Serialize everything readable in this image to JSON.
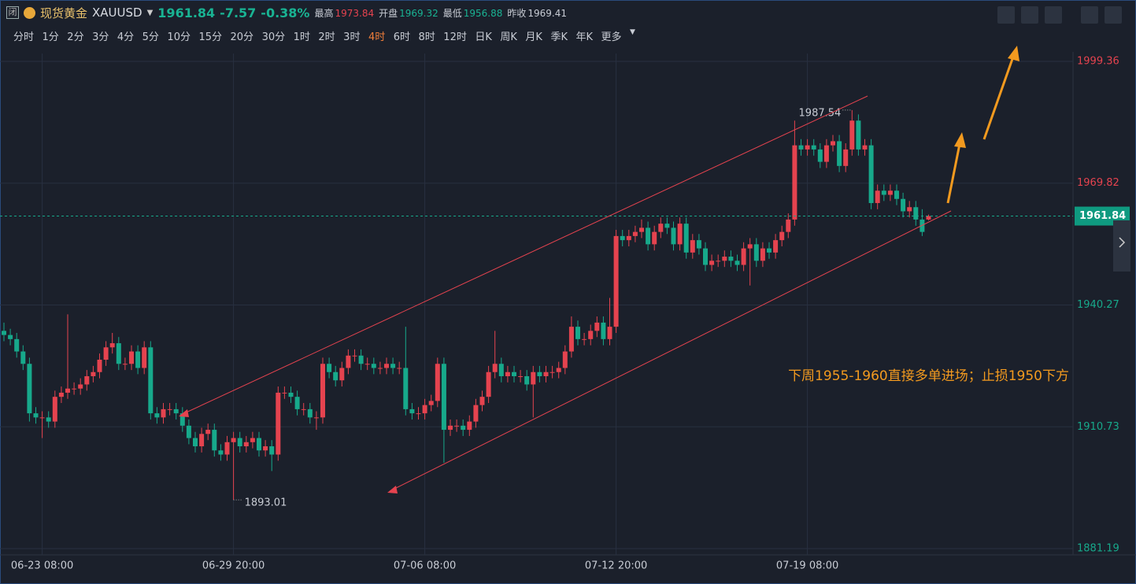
{
  "header": {
    "icon": "闭",
    "name": "现货黄金",
    "symbol": "XAUUSD",
    "price": "1961.84",
    "change": "-7.57",
    "change_pct": "-0.38%",
    "stats": [
      {
        "label": "最高",
        "value": "1973.84"
      },
      {
        "label": "开盘",
        "value": "1969.32"
      },
      {
        "label": "最低",
        "value": "1956.88"
      },
      {
        "label": "昨收",
        "value": "1969.41"
      }
    ]
  },
  "intervals": [
    "分时",
    "1分",
    "2分",
    "3分",
    "4分",
    "5分",
    "10分",
    "15分",
    "20分",
    "30分",
    "1时",
    "2时",
    "3时",
    "4时",
    "6时",
    "8时",
    "12时",
    "日K",
    "周K",
    "月K",
    "季K",
    "年K",
    "更多"
  ],
  "active_interval": "4时",
  "chart_data": {
    "type": "candlestick",
    "categories": [
      null,
      null,
      null,
      null,
      null,
      null,
      "06-23 08:00",
      null,
      null,
      null,
      null,
      null,
      null,
      null,
      null,
      null,
      null,
      null,
      null,
      null,
      null,
      null,
      null,
      null,
      null,
      null,
      null,
      null,
      null,
      null,
      null,
      null,
      null,
      null,
      null,
      null,
      "06-29 20:00",
      null,
      null,
      null,
      null,
      null,
      null,
      null,
      null,
      null,
      null,
      null,
      null,
      null,
      null,
      null,
      null,
      null,
      null,
      null,
      null,
      null,
      null,
      null,
      null,
      null,
      null,
      null,
      null,
      null,
      "07-06 08:00",
      null,
      null,
      null,
      null,
      null,
      null,
      null,
      null,
      null,
      null,
      null,
      null,
      null,
      null,
      null,
      null,
      null,
      null,
      null,
      null,
      null,
      null,
      null,
      null,
      null,
      null,
      null,
      null,
      null,
      "07-12 20:00",
      null,
      null,
      null,
      null,
      null,
      null,
      null,
      null,
      null,
      null,
      null,
      null,
      null,
      null,
      null,
      null,
      null,
      null,
      null,
      null,
      null,
      null,
      null,
      null,
      null,
      null,
      null,
      null,
      null,
      "07-19 08:00",
      null,
      null,
      null,
      null,
      null,
      null,
      null,
      null,
      null,
      null,
      null,
      null,
      null,
      null,
      null,
      null,
      null,
      null,
      null
    ],
    "open": [
      1934,
      1933,
      1932,
      1929,
      1926,
      1914,
      1913,
      1913,
      1912,
      1918,
      1919,
      1920,
      1920,
      1921,
      1923,
      1924,
      1927,
      1930,
      1931,
      1926,
      1926,
      1929,
      1925,
      1930,
      1914,
      1913,
      1915,
      1915,
      1914,
      1911,
      1908,
      1906,
      1909,
      1910,
      1905,
      1904,
      1907,
      1908,
      1906,
      1907,
      1908,
      1905,
      1906,
      1904,
      1919,
      1919,
      1918,
      1915,
      1915,
      1913,
      1913,
      1926,
      1924,
      1922,
      1925,
      1928,
      1928,
      1926,
      1926,
      1925,
      1925,
      1926,
      1925,
      1925,
      1915,
      1914,
      1914,
      1916,
      1917,
      1926,
      1910,
      1911,
      1911,
      1910,
      1912,
      1916,
      1918,
      1924,
      1926,
      1923,
      1924,
      1923,
      1923,
      1921,
      1924,
      1923,
      1924,
      1924,
      1925,
      1929,
      1935,
      1932,
      1932,
      1934,
      1936,
      1932,
      1935,
      1957,
      1956,
      1957,
      1958,
      1959,
      1955,
      1958,
      1960,
      1959,
      1955,
      1960,
      1953,
      1956,
      1954,
      1950,
      1951,
      1951,
      1952,
      1951,
      1950,
      1954,
      1955,
      1951,
      1954,
      1953,
      1956,
      1958,
      1961,
      1979,
      1978,
      1979,
      1978,
      1975,
      1979,
      1980,
      1974,
      1978,
      1985,
      1978,
      1979,
      1965,
      1968,
      1967,
      1968,
      1966,
      1963,
      1964,
      1961,
      1961
    ],
    "high": [
      1936,
      1934.5,
      1933.5,
      1930.5,
      1927.5,
      1915.5,
      1914.5,
      1914.5,
      1919.5,
      1920.5,
      1938,
      1921.5,
      1922.5,
      1924.5,
      1925.5,
      1928.5,
      1931.5,
      1933.5,
      1932.5,
      1927.5,
      1930.5,
      1930.5,
      1931.5,
      1931.5,
      1915.5,
      1916.5,
      1916.5,
      1916.5,
      1915.5,
      1912.5,
      1909.5,
      1910.5,
      1911.5,
      1911.5,
      1906.5,
      1908.5,
      1909.5,
      1909.5,
      1908.5,
      1909.5,
      1909.5,
      1907.5,
      1907.5,
      1920.5,
      1920.5,
      1920.5,
      1919.5,
      1916.5,
      1916.5,
      1914.5,
      1927.5,
      1927.5,
      1925.5,
      1926.5,
      1929.5,
      1929.5,
      1929.5,
      1927.5,
      1927.5,
      1926.5,
      1927.5,
      1927.5,
      1926.5,
      1935,
      1916.5,
      1915.5,
      1917.5,
      1918.5,
      1927.5,
      1927.5,
      1912.5,
      1912.5,
      1912.5,
      1913.5,
      1917.5,
      1919.5,
      1925.5,
      1934,
      1927.5,
      1925.5,
      1925.5,
      1924.5,
      1924.5,
      1925.5,
      1925.5,
      1925.5,
      1925.5,
      1926.5,
      1930.5,
      1937.5,
      1936.5,
      1933.5,
      1935.5,
      1937.5,
      1937.5,
      1942,
      1958.5,
      1958.5,
      1958.5,
      1959.5,
      1961,
      1960.5,
      1959.5,
      1961.5,
      1961.5,
      1960.5,
      1961.5,
      1961.5,
      1957.5,
      1957.5,
      1955.5,
      1952.5,
      1952.5,
      1953.5,
      1953.5,
      1952.5,
      1955.5,
      1956.5,
      1956.5,
      1955.5,
      1955.5,
      1957.5,
      1959.5,
      1962.5,
      1985,
      1980.5,
      1980.5,
      1980.5,
      1979.5,
      1980.5,
      1981.5,
      1981.5,
      1979.5,
      1987.54,
      1986.5,
      1980.5,
      1980.5,
      1969.5,
      1969.5,
      1969.5,
      1969.5,
      1967.5,
      1965.5,
      1965.5,
      1963.5,
      1962.2
    ],
    "low": [
      1931.5,
      1930.5,
      1927.5,
      1924.5,
      1912,
      1911.5,
      1908,
      1910.5,
      1910.5,
      1916.5,
      1917.5,
      1918.5,
      1918.5,
      1919.5,
      1921.5,
      1922.5,
      1925.5,
      1928.5,
      1924.5,
      1924.5,
      1924.5,
      1923.5,
      1923.5,
      1912.5,
      1911.5,
      1911.5,
      1913.5,
      1912.5,
      1909.5,
      1906.5,
      1904.5,
      1904.5,
      1907.5,
      1903.5,
      1902.5,
      1902.5,
      1893.01,
      1904.5,
      1904.5,
      1905.5,
      1903.5,
      1903.5,
      1900,
      1902.5,
      1917.5,
      1916.5,
      1913.5,
      1913.5,
      1911.5,
      1910,
      1911.5,
      1922.5,
      1920.5,
      1920.5,
      1923.5,
      1926.5,
      1924.5,
      1924.5,
      1923.5,
      1923.5,
      1923.5,
      1923.5,
      1923.5,
      1913.5,
      1912.5,
      1912.5,
      1912.5,
      1914.5,
      1915.5,
      1902,
      1908.5,
      1909.5,
      1908.5,
      1908.5,
      1910.5,
      1914.5,
      1916.5,
      1922.5,
      1921.5,
      1921.5,
      1921.5,
      1921.5,
      1919.5,
      1913,
      1921.5,
      1921.5,
      1922.5,
      1922.5,
      1923.5,
      1927.5,
      1930.5,
      1930.5,
      1930.5,
      1932.5,
      1930.5,
      1930.5,
      1933.5,
      1954.5,
      1954.5,
      1955.5,
      1956.5,
      1953.5,
      1953.5,
      1956.5,
      1957.5,
      1953.5,
      1953.5,
      1951.5,
      1951.5,
      1952.5,
      1948.5,
      1948.5,
      1949.5,
      1949.5,
      1949.5,
      1948.5,
      1948.5,
      1945,
      1949.5,
      1949.5,
      1951.5,
      1951.5,
      1954.5,
      1956.5,
      1959.5,
      1976.5,
      1976.5,
      1976.5,
      1973.5,
      1973.5,
      1977.5,
      1972.5,
      1972.5,
      1976.5,
      1976.5,
      1976.5,
      1963.5,
      1963.5,
      1965.5,
      1965.5,
      1964.5,
      1961.5,
      1961.5,
      1959.5,
      1957,
      1960.8
    ],
    "close": [
      1933,
      1932,
      1929,
      1926,
      1914,
      1913,
      1913,
      1912,
      1918,
      1919,
      1920,
      1920,
      1921,
      1923,
      1924,
      1927,
      1930,
      1931,
      1926,
      1926,
      1929,
      1925,
      1930,
      1914,
      1913,
      1915,
      1915,
      1914,
      1911,
      1908,
      1906,
      1909,
      1910,
      1905,
      1904,
      1907,
      1908,
      1906,
      1907,
      1908,
      1905,
      1906,
      1904,
      1919,
      1919,
      1918,
      1915,
      1915,
      1913,
      1913,
      1926,
      1924,
      1922,
      1925,
      1928,
      1928,
      1926,
      1926,
      1925,
      1925,
      1926,
      1925,
      1925,
      1915,
      1914,
      1914,
      1916,
      1917,
      1926,
      1910,
      1911,
      1911,
      1910,
      1912,
      1916,
      1918,
      1924,
      1926,
      1923,
      1924,
      1923,
      1923,
      1921,
      1924,
      1923,
      1924,
      1924,
      1925,
      1929,
      1935,
      1932,
      1932,
      1934,
      1936,
      1932,
      1935,
      1957,
      1956,
      1957,
      1958,
      1959,
      1955,
      1958,
      1960,
      1959,
      1955,
      1960,
      1953,
      1956,
      1954,
      1950,
      1951,
      1951,
      1952,
      1951,
      1950,
      1954,
      1955,
      1951,
      1954,
      1953,
      1956,
      1958,
      1961,
      1979,
      1978,
      1979,
      1978,
      1975,
      1979,
      1980,
      1974,
      1978,
      1985,
      1978,
      1979,
      1965,
      1968,
      1967,
      1968,
      1966,
      1963,
      1964,
      1961,
      1958,
      1961.84
    ],
    "up_color": "#e5434f",
    "down_color": "#17a98b",
    "ylim": [
      1879.66,
      2001.27
    ],
    "yticks": [
      1881.19,
      1910.73,
      1940.27,
      1969.82,
      1999.36
    ],
    "grid": true,
    "note": "下周1955-1960直接多单进场；止损1950下方"
  }
}
